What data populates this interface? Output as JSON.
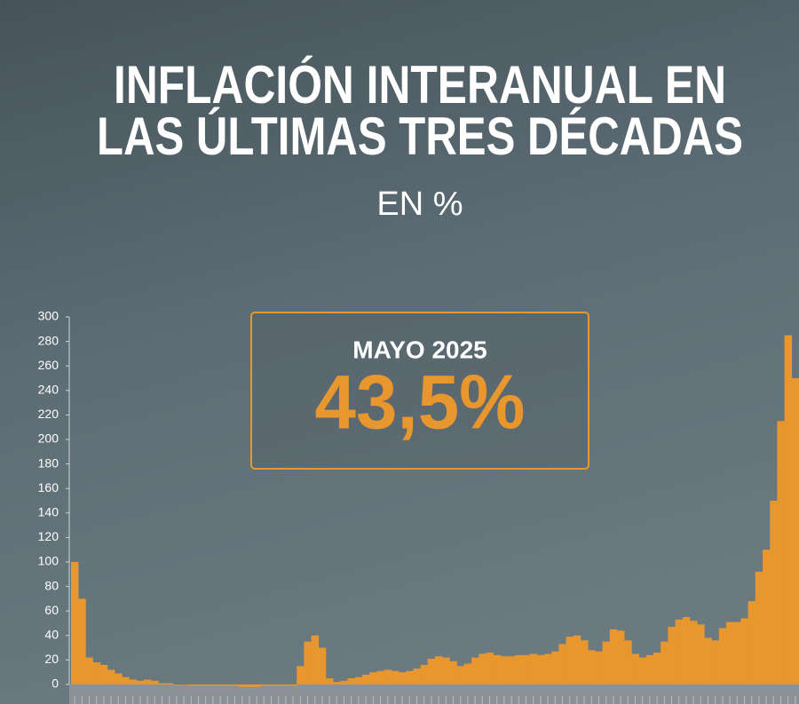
{
  "chart_data": {
    "type": "bar",
    "title": [
      "INFLACIÓN INTERANUAL EN",
      "LAS ÚLTIMAS TRES DÉCADAS"
    ],
    "subtitle": "EN %",
    "annotation": {
      "label": "MAYO 2025",
      "value": "43,5%"
    },
    "color": "#e8962e",
    "ylim": [
      0,
      300
    ],
    "yticks": [
      0,
      20,
      40,
      60,
      80,
      100,
      120,
      140,
      160,
      180,
      200,
      220,
      240,
      260,
      280,
      300
    ],
    "categories": [
      null,
      null,
      null,
      null,
      null,
      null,
      null,
      null,
      null,
      null,
      null,
      null,
      null,
      null,
      null,
      null,
      null,
      null,
      null,
      null,
      null,
      null,
      null,
      null,
      null,
      null,
      null,
      null,
      null,
      null,
      null,
      null,
      null,
      null,
      null,
      null,
      null,
      null,
      null,
      null,
      null,
      null,
      null,
      null,
      null,
      null,
      null,
      null,
      null,
      null,
      null,
      null,
      null,
      null,
      null,
      null,
      null,
      null,
      null,
      null,
      null,
      null,
      null,
      null,
      null,
      null,
      null,
      null,
      null,
      null,
      null,
      null,
      null,
      null,
      null,
      null,
      null,
      null,
      null,
      null,
      null,
      null,
      null,
      null,
      null,
      null,
      null,
      null,
      null,
      null,
      null,
      null,
      null,
      null,
      null,
      null,
      null,
      null,
      null,
      null
    ],
    "values": [
      100,
      70,
      22,
      18,
      16,
      12,
      9,
      6,
      4,
      3,
      4,
      3,
      1,
      1,
      0,
      0,
      -1,
      -1,
      -1,
      -1,
      -1,
      -1,
      -1,
      -2,
      -2,
      -2,
      -1,
      -1,
      -1,
      -1,
      -1,
      15,
      35,
      40,
      30,
      5,
      2,
      3,
      5,
      6,
      8,
      10,
      11,
      12,
      11,
      10,
      11,
      13,
      16,
      21,
      23,
      22,
      19,
      15,
      17,
      22,
      25,
      26,
      24,
      23,
      23,
      24,
      24,
      25,
      24,
      25,
      27,
      33,
      39,
      40,
      36,
      28,
      27,
      35,
      45,
      44,
      36,
      25,
      22,
      24,
      26,
      35,
      47,
      53,
      55,
      52,
      49,
      38,
      36,
      46,
      51,
      51,
      54,
      68,
      92,
      110,
      150,
      215,
      285,
      250
    ]
  }
}
